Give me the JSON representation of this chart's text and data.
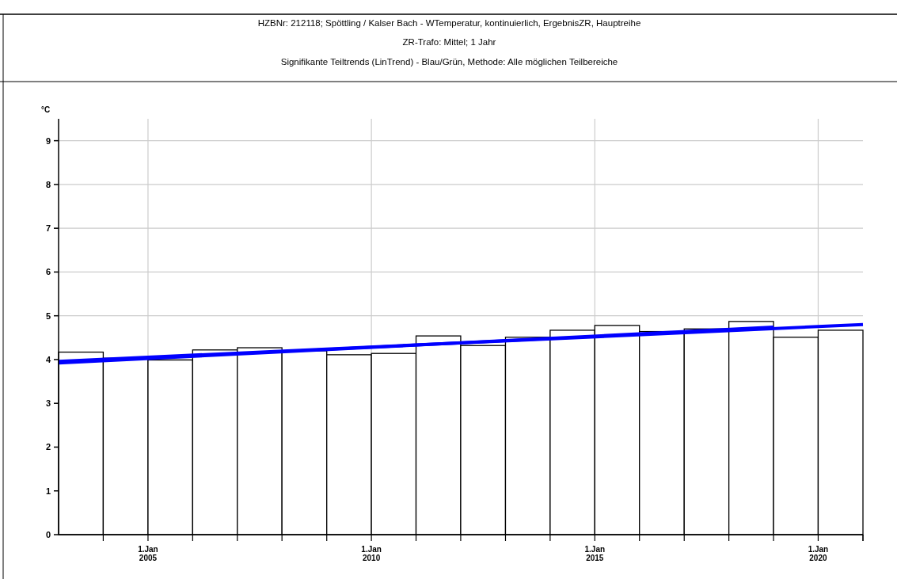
{
  "chart_data": {
    "type": "histogram",
    "title": "HZBNr: 212118; Spöttling / Kalser Bach - WTemperatur, kontinuierlich, ErgebnisZR, Hauptreihe",
    "subtitle": "ZR-Trafo: Mittel; 1 Jahr",
    "annotations": [
      "Signifikante Teiltrends (LinTrend) - Blau/Grün, Methode: Alle möglichen Teilbereiche"
    ],
    "ylabel": "°C",
    "bins": [
      "2003-01-01",
      "2004-01-01",
      "2005-01-01",
      "2006-01-01",
      "2007-01-01",
      "2008-01-01",
      "2009-01-01",
      "2010-01-01",
      "2011-01-01",
      "2012-01-01",
      "2013-01-01",
      "2014-01-01",
      "2015-01-01",
      "2016-01-01",
      "2017-01-01",
      "2018-01-01",
      "2019-01-01",
      "2020-01-01",
      "2021-01-01"
    ],
    "series": [
      {
        "color": "#000000",
        "values": [
          4.17,
          4.03,
          3.99,
          4.22,
          4.27,
          4.2,
          4.11,
          4.14,
          4.54,
          4.32,
          4.51,
          4.67,
          4.78,
          4.64,
          4.7,
          4.87,
          4.51,
          4.67
        ]
      },
      {
        "type": "line",
        "color": "#0000ff",
        "x": [
          "2003-01-01",
          "2021-01-01"
        ],
        "values": [
          3.96,
          4.8
        ]
      },
      {
        "type": "line",
        "color": "#0000ff",
        "x": [
          "2003-01-01",
          "2019-01-01"
        ],
        "values": [
          3.92,
          4.74
        ]
      }
    ],
    "xlim": [
      "2003-01-01",
      "2021-01-01"
    ],
    "xticks": [
      {
        "value": "2004-01-01",
        "label": null
      },
      {
        "value": "2005-01-01",
        "label": "1.Jan\n2005"
      },
      {
        "value": "2006-01-01",
        "label": null
      },
      {
        "value": "2007-01-01",
        "label": null
      },
      {
        "value": "2008-01-01",
        "label": null
      },
      {
        "value": "2009-01-01",
        "label": null
      },
      {
        "value": "2010-01-01",
        "label": "1.Jan\n2010"
      },
      {
        "value": "2011-01-01",
        "label": null
      },
      {
        "value": "2012-01-01",
        "label": null
      },
      {
        "value": "2013-01-01",
        "label": null
      },
      {
        "value": "2014-01-01",
        "label": null
      },
      {
        "value": "2015-01-01",
        "label": "1.Jan\n2015"
      },
      {
        "value": "2016-01-01",
        "label": null
      },
      {
        "value": "2017-01-01",
        "label": null
      },
      {
        "value": "2018-01-01",
        "label": null
      },
      {
        "value": "2019-01-01",
        "label": null
      },
      {
        "value": "2020-01-01",
        "label": "1.Jan\n2020"
      },
      {
        "value": "2021-01-01",
        "label": null
      }
    ],
    "ylim": [
      0,
      9.5
    ],
    "yticks": [
      0,
      1,
      2,
      3,
      4,
      5,
      6,
      7,
      8,
      9
    ],
    "grid": true
  }
}
